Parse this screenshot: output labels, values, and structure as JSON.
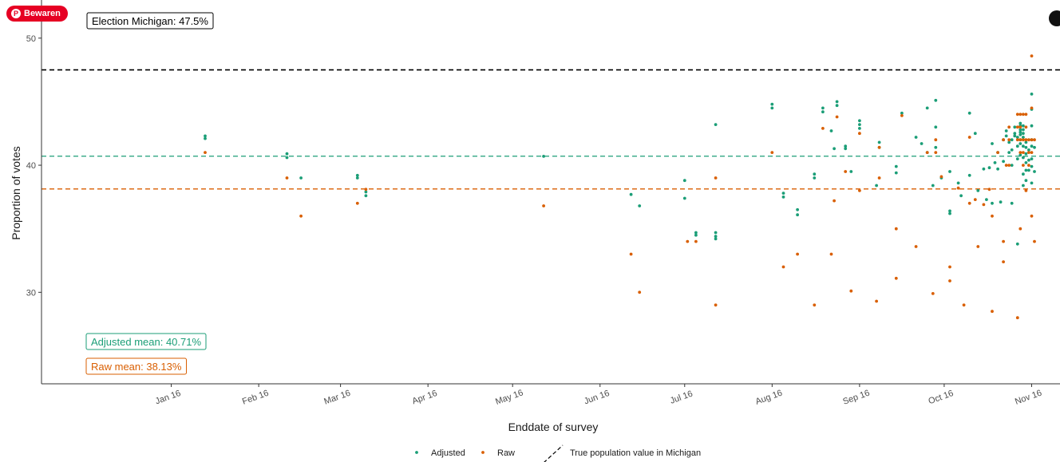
{
  "colors": {
    "adjusted": "#1b9e77",
    "raw": "#d95f02",
    "truth": "#000000",
    "pinterest": "#e60023"
  },
  "overlay": {
    "save_button_label": "Bewaren",
    "save_button_icon": "pinterest-logo-icon",
    "corner_icon": "share-icon"
  },
  "chart_data": {
    "type": "scatter",
    "title": "",
    "xlabel": "Enddate of survey",
    "ylabel": "Proportion of votes",
    "x_type": "date",
    "xlim": [
      "2015-12-01",
      "2016-11-17"
    ],
    "ylim": [
      22.8,
      53
    ],
    "x_ticks": [
      {
        "date": "2016-01-16",
        "label": "Jan 16"
      },
      {
        "date": "2016-02-16",
        "label": "Feb 16"
      },
      {
        "date": "2016-03-16",
        "label": "Mar 16"
      },
      {
        "date": "2016-04-16",
        "label": "Apr 16"
      },
      {
        "date": "2016-05-16",
        "label": "May 16"
      },
      {
        "date": "2016-06-16",
        "label": "Jun 16"
      },
      {
        "date": "2016-07-16",
        "label": "Jul 16"
      },
      {
        "date": "2016-08-16",
        "label": "Aug 16"
      },
      {
        "date": "2016-09-16",
        "label": "Sep 16"
      },
      {
        "date": "2016-10-16",
        "label": "Oct 16"
      },
      {
        "date": "2016-11-16",
        "label": "Nov 16"
      }
    ],
    "y_ticks": [
      30,
      40,
      50
    ],
    "grid": false,
    "legend_position": "bottom",
    "legend": [
      {
        "label": "Adjusted",
        "kind": "point",
        "color_key": "adjusted"
      },
      {
        "label": "Raw",
        "kind": "point",
        "color_key": "raw"
      },
      {
        "label": "True population value in Michigan",
        "kind": "dashed",
        "color_key": "truth"
      }
    ],
    "reference_lines": [
      {
        "name": "election",
        "y": 47.5,
        "color_key": "truth"
      },
      {
        "name": "adjusted-mean",
        "y": 40.71,
        "color_key": "adjusted"
      },
      {
        "name": "raw-mean",
        "y": 38.13,
        "color_key": "raw"
      }
    ],
    "annotations": [
      {
        "name": "election-label",
        "text": "Election Michigan: 47.5%",
        "color_key": "truth",
        "anchor": "top-left"
      },
      {
        "name": "adjusted-mean-label",
        "text": "Adjusted mean: 40.71%",
        "color_key": "adjusted",
        "anchor": "bottom-left"
      },
      {
        "name": "raw-mean-label",
        "text": "Raw mean: 38.13%",
        "color_key": "raw",
        "anchor": "bottom-left"
      }
    ],
    "series": [
      {
        "name": "Adjusted",
        "color_key": "adjusted",
        "points": [
          [
            "2016-01-28",
            42.1
          ],
          [
            "2016-01-28",
            42.3
          ],
          [
            "2016-02-26",
            40.9
          ],
          [
            "2016-02-26",
            40.6
          ],
          [
            "2016-03-02",
            39.0
          ],
          [
            "2016-03-22",
            39.2
          ],
          [
            "2016-03-22",
            39.0
          ],
          [
            "2016-03-25",
            37.9
          ],
          [
            "2016-03-25",
            37.6
          ],
          [
            "2016-05-27",
            40.7
          ],
          [
            "2016-06-27",
            37.7
          ],
          [
            "2016-06-30",
            36.8
          ],
          [
            "2016-07-16",
            38.8
          ],
          [
            "2016-07-16",
            37.4
          ],
          [
            "2016-07-20",
            34.5
          ],
          [
            "2016-07-20",
            34.7
          ],
          [
            "2016-07-27",
            43.2
          ],
          [
            "2016-07-27",
            34.4
          ],
          [
            "2016-07-27",
            34.7
          ],
          [
            "2016-07-27",
            34.2
          ],
          [
            "2016-08-16",
            44.8
          ],
          [
            "2016-08-16",
            44.5
          ],
          [
            "2016-08-20",
            37.5
          ],
          [
            "2016-08-20",
            37.8
          ],
          [
            "2016-08-25",
            36.5
          ],
          [
            "2016-08-25",
            36.1
          ],
          [
            "2016-08-31",
            39.0
          ],
          [
            "2016-08-31",
            39.3
          ],
          [
            "2016-09-03",
            44.5
          ],
          [
            "2016-09-03",
            44.2
          ],
          [
            "2016-09-06",
            42.7
          ],
          [
            "2016-09-07",
            41.3
          ],
          [
            "2016-09-08",
            45.0
          ],
          [
            "2016-09-08",
            44.7
          ],
          [
            "2016-09-11",
            41.5
          ],
          [
            "2016-09-11",
            41.3
          ],
          [
            "2016-09-13",
            39.5
          ],
          [
            "2016-09-16",
            43.5
          ],
          [
            "2016-09-16",
            43.2
          ],
          [
            "2016-09-16",
            42.9
          ],
          [
            "2016-09-22",
            38.4
          ],
          [
            "2016-09-23",
            41.8
          ],
          [
            "2016-09-23",
            41.4
          ],
          [
            "2016-09-29",
            39.9
          ],
          [
            "2016-09-29",
            39.4
          ],
          [
            "2016-10-01",
            44.1
          ],
          [
            "2016-10-06",
            42.2
          ],
          [
            "2016-10-08",
            41.7
          ],
          [
            "2016-10-10",
            44.5
          ],
          [
            "2016-10-10",
            41.0
          ],
          [
            "2016-10-12",
            38.4
          ],
          [
            "2016-10-13",
            45.1
          ],
          [
            "2016-10-13",
            43.0
          ],
          [
            "2016-10-13",
            41.4
          ],
          [
            "2016-10-15",
            39.0
          ],
          [
            "2016-10-18",
            39.5
          ],
          [
            "2016-10-18",
            36.4
          ],
          [
            "2016-10-18",
            36.2
          ],
          [
            "2016-10-21",
            38.6
          ],
          [
            "2016-10-22",
            37.6
          ],
          [
            "2016-10-25",
            44.1
          ],
          [
            "2016-10-25",
            39.2
          ],
          [
            "2016-10-27",
            42.5
          ],
          [
            "2016-10-28",
            38.0
          ],
          [
            "2016-10-30",
            39.7
          ],
          [
            "2016-10-31",
            37.3
          ],
          [
            "2016-11-01",
            39.8
          ],
          [
            "2016-11-02",
            41.7
          ],
          [
            "2016-11-02",
            37.0
          ],
          [
            "2016-11-03",
            40.2
          ],
          [
            "2016-11-04",
            41.0
          ],
          [
            "2016-11-04",
            39.7
          ],
          [
            "2016-11-05",
            37.1
          ],
          [
            "2016-11-06",
            42.0
          ],
          [
            "2016-11-06",
            40.3
          ],
          [
            "2016-11-07",
            42.7
          ],
          [
            "2016-11-07",
            42.3
          ],
          [
            "2016-11-08",
            41.8
          ],
          [
            "2016-11-08",
            41.0
          ],
          [
            "2016-11-09",
            42.0
          ],
          [
            "2016-11-09",
            41.2
          ],
          [
            "2016-11-09",
            40.0
          ],
          [
            "2016-11-09",
            37.0
          ],
          [
            "2016-11-10",
            43.0
          ],
          [
            "2016-11-10",
            42.5
          ],
          [
            "2016-11-10",
            42.3
          ],
          [
            "2016-11-11",
            42.2
          ],
          [
            "2016-11-11",
            41.5
          ],
          [
            "2016-11-11",
            40.5
          ],
          [
            "2016-11-11",
            33.8
          ],
          [
            "2016-11-12",
            43.3
          ],
          [
            "2016-11-12",
            43.1
          ],
          [
            "2016-11-12",
            42.8
          ],
          [
            "2016-11-12",
            42.6
          ],
          [
            "2016-11-12",
            42.4
          ],
          [
            "2016-11-12",
            42.0
          ],
          [
            "2016-11-12",
            41.7
          ],
          [
            "2016-11-12",
            40.8
          ],
          [
            "2016-11-13",
            43.1
          ],
          [
            "2016-11-13",
            42.8
          ],
          [
            "2016-11-13",
            42.5
          ],
          [
            "2016-11-13",
            42.2
          ],
          [
            "2016-11-13",
            41.5
          ],
          [
            "2016-11-13",
            40.6
          ],
          [
            "2016-11-13",
            39.3
          ],
          [
            "2016-11-13",
            38.4
          ],
          [
            "2016-11-14",
            41.8
          ],
          [
            "2016-11-14",
            41.4
          ],
          [
            "2016-11-14",
            40.9
          ],
          [
            "2016-11-14",
            40.2
          ],
          [
            "2016-11-14",
            39.6
          ],
          [
            "2016-11-14",
            38.8
          ],
          [
            "2016-11-15",
            41.2
          ],
          [
            "2016-11-15",
            40.4
          ],
          [
            "2016-11-15",
            39.6
          ],
          [
            "2016-11-16",
            45.6
          ],
          [
            "2016-11-16",
            44.4
          ],
          [
            "2016-11-16",
            43.1
          ],
          [
            "2016-11-16",
            42.0
          ],
          [
            "2016-11-16",
            41.5
          ],
          [
            "2016-11-16",
            40.5
          ],
          [
            "2016-11-16",
            39.9
          ],
          [
            "2016-11-16",
            38.6
          ],
          [
            "2016-11-17",
            41.4
          ],
          [
            "2016-11-17",
            39.5
          ]
        ]
      },
      {
        "name": "Raw",
        "color_key": "raw",
        "points": [
          [
            "2016-01-28",
            41.0
          ],
          [
            "2016-02-26",
            39.0
          ],
          [
            "2016-03-02",
            36.0
          ],
          [
            "2016-03-22",
            37.0
          ],
          [
            "2016-03-25",
            38.1
          ],
          [
            "2016-05-27",
            36.8
          ],
          [
            "2016-06-27",
            33.0
          ],
          [
            "2016-06-30",
            30.0
          ],
          [
            "2016-07-17",
            34.0
          ],
          [
            "2016-07-20",
            34.0
          ],
          [
            "2016-07-27",
            39.0
          ],
          [
            "2016-07-27",
            29.0
          ],
          [
            "2016-08-16",
            41.0
          ],
          [
            "2016-08-20",
            32.0
          ],
          [
            "2016-08-25",
            33.0
          ],
          [
            "2016-08-31",
            29.0
          ],
          [
            "2016-09-03",
            42.9
          ],
          [
            "2016-09-06",
            33.0
          ],
          [
            "2016-09-07",
            37.2
          ],
          [
            "2016-09-08",
            43.8
          ],
          [
            "2016-09-11",
            39.5
          ],
          [
            "2016-09-13",
            30.1
          ],
          [
            "2016-09-16",
            38.0
          ],
          [
            "2016-09-16",
            42.5
          ],
          [
            "2016-09-22",
            29.3
          ],
          [
            "2016-09-23",
            41.4
          ],
          [
            "2016-09-23",
            39.0
          ],
          [
            "2016-09-29",
            35.0
          ],
          [
            "2016-09-29",
            31.1
          ],
          [
            "2016-10-01",
            43.9
          ],
          [
            "2016-10-06",
            33.6
          ],
          [
            "2016-10-10",
            41.0
          ],
          [
            "2016-10-12",
            29.9
          ],
          [
            "2016-10-13",
            42.0
          ],
          [
            "2016-10-13",
            41.0
          ],
          [
            "2016-10-15",
            39.1
          ],
          [
            "2016-10-18",
            32.0
          ],
          [
            "2016-10-18",
            30.9
          ],
          [
            "2016-10-21",
            38.2
          ],
          [
            "2016-10-23",
            29.0
          ],
          [
            "2016-10-25",
            42.2
          ],
          [
            "2016-10-25",
            37.0
          ],
          [
            "2016-10-27",
            37.3
          ],
          [
            "2016-10-28",
            33.6
          ],
          [
            "2016-10-30",
            36.9
          ],
          [
            "2016-11-01",
            38.1
          ],
          [
            "2016-11-02",
            36.0
          ],
          [
            "2016-11-02",
            28.5
          ],
          [
            "2016-11-04",
            41.0
          ],
          [
            "2016-11-06",
            42.0
          ],
          [
            "2016-11-06",
            34.0
          ],
          [
            "2016-11-06",
            32.4
          ],
          [
            "2016-11-07",
            40.0
          ],
          [
            "2016-11-08",
            43.0
          ],
          [
            "2016-11-08",
            42.0
          ],
          [
            "2016-11-08",
            40.0
          ],
          [
            "2016-11-11",
            44.0
          ],
          [
            "2016-11-11",
            43.0
          ],
          [
            "2016-11-11",
            42.0
          ],
          [
            "2016-11-11",
            28.0
          ],
          [
            "2016-11-12",
            44.0
          ],
          [
            "2016-11-12",
            43.0
          ],
          [
            "2016-11-12",
            42.0
          ],
          [
            "2016-11-12",
            41.0
          ],
          [
            "2016-11-12",
            35.0
          ],
          [
            "2016-11-13",
            44.0
          ],
          [
            "2016-11-13",
            42.0
          ],
          [
            "2016-11-13",
            41.0
          ],
          [
            "2016-11-13",
            40.0
          ],
          [
            "2016-11-14",
            44.0
          ],
          [
            "2016-11-14",
            43.0
          ],
          [
            "2016-11-14",
            42.0
          ],
          [
            "2016-11-14",
            38.0
          ],
          [
            "2016-11-15",
            42.0
          ],
          [
            "2016-11-15",
            41.0
          ],
          [
            "2016-11-15",
            40.0
          ],
          [
            "2016-11-16",
            48.6
          ],
          [
            "2016-11-16",
            44.5
          ],
          [
            "2016-11-16",
            42.0
          ],
          [
            "2016-11-16",
            41.0
          ],
          [
            "2016-11-16",
            36.0
          ],
          [
            "2016-11-17",
            42.0
          ],
          [
            "2016-11-17",
            34.0
          ]
        ]
      }
    ]
  }
}
